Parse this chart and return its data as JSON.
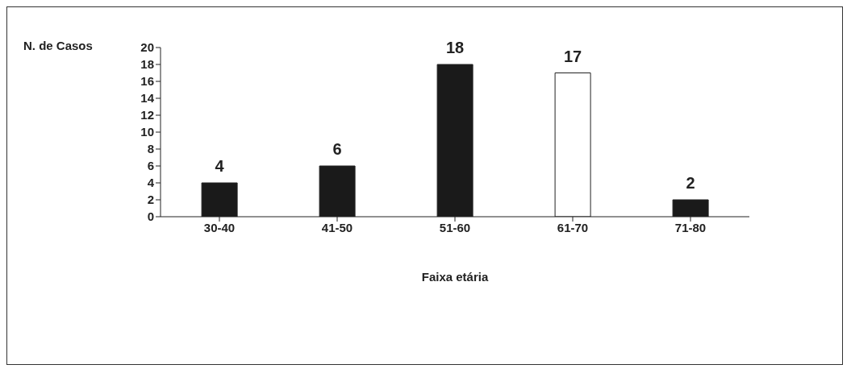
{
  "chart_data": {
    "type": "bar",
    "xlabel": "Faixa etária",
    "ylabel": "N. de Casos",
    "categories": [
      "30-40",
      "41-50",
      "51-60",
      "61-70",
      "71-80"
    ],
    "values": [
      4,
      6,
      18,
      17,
      2
    ],
    "colors": [
      "#1a1a1a",
      "#1a1a1a",
      "#1a1a1a",
      "#ffffff",
      "#1a1a1a"
    ],
    "ylim": [
      0,
      20
    ],
    "yticks": [
      0,
      2,
      4,
      6,
      8,
      10,
      12,
      14,
      16,
      18,
      20
    ],
    "grid": false,
    "data_labels": true
  }
}
